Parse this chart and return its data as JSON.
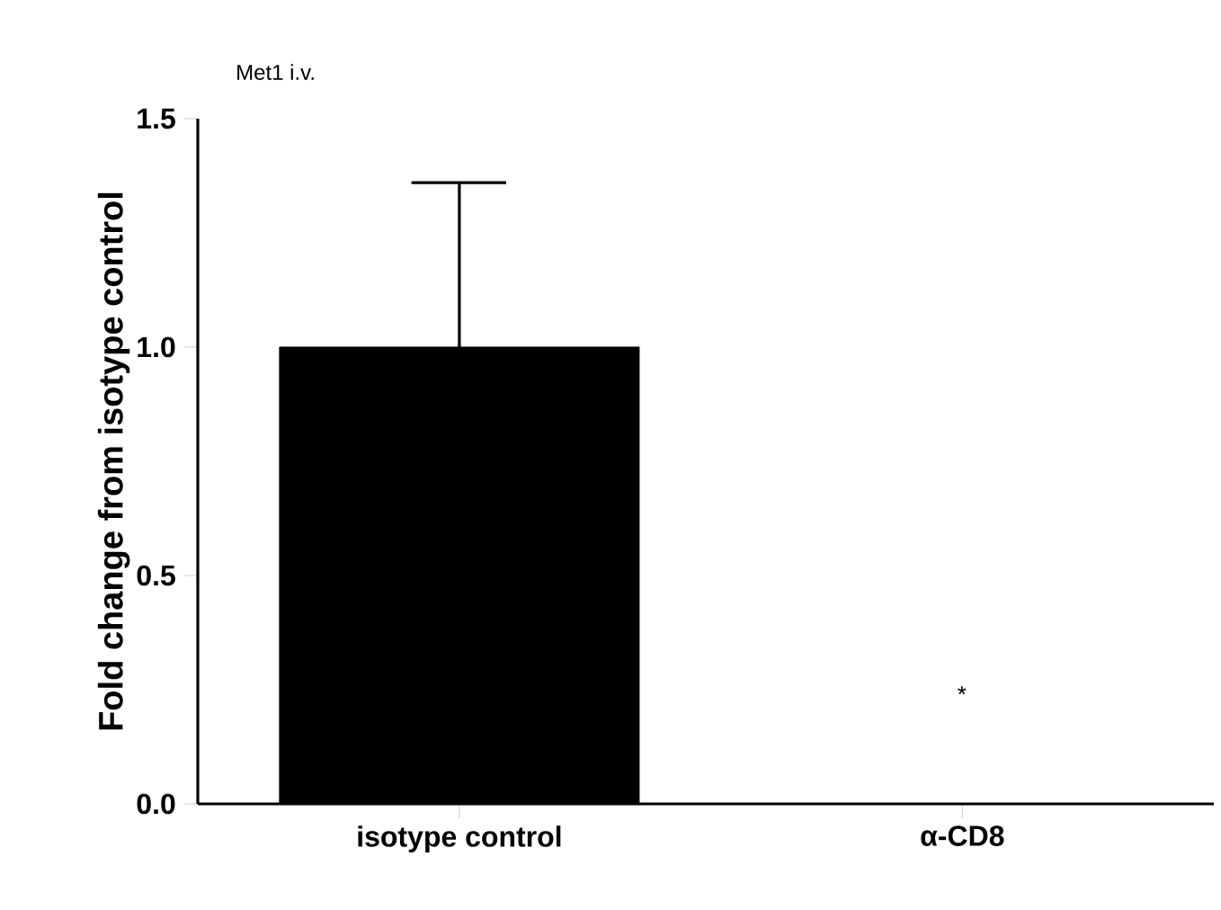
{
  "chart_data": {
    "type": "bar",
    "title": "Met1 i.v.",
    "ylabel": "Fold change from isotype control",
    "categories": [
      "isotype control",
      "α-CD8"
    ],
    "values": [
      1.0,
      0.0
    ],
    "errors": [
      [
        1.0,
        1.36
      ],
      null
    ],
    "color": "#000000",
    "ylim": [
      0,
      1.5
    ],
    "yticks": [
      {
        "value": 0,
        "label": "0.0"
      },
      {
        "value": 0.5,
        "label": "0.5"
      },
      {
        "value": 1.0,
        "label": "1.0"
      },
      {
        "value": 1.5,
        "label": "1.5"
      }
    ],
    "annotations": [
      "*"
    ]
  }
}
